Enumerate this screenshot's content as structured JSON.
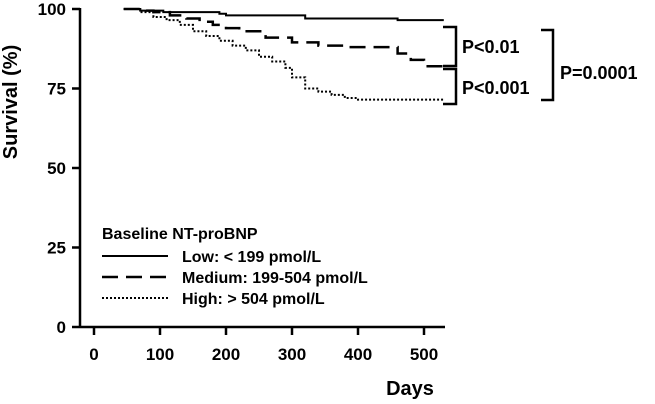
{
  "chart_data": {
    "type": "line",
    "xlabel": "Days",
    "ylabel": "Survival (%)",
    "xlim": [
      -10,
      540
    ],
    "ylim": [
      0,
      100
    ],
    "xticks": [
      0,
      100,
      200,
      300,
      400,
      500
    ],
    "yticks": [
      0,
      25,
      50,
      75,
      100
    ],
    "grid": false,
    "legend": {
      "title": "Baseline NT-proBNP",
      "placement": "bottom-left",
      "entries": [
        "Low: < 199 pmol/L",
        "Medium: 199-504 pmol/L",
        "High: > 504 pmol/L"
      ]
    },
    "series": [
      {
        "name": "Low: < 199 pmol/L",
        "style": "solid",
        "x": [
          45,
          65,
          70,
          100,
          105,
          120,
          190,
          200,
          300,
          320,
          450,
          460,
          530
        ],
        "y": [
          100,
          100,
          99.5,
          99.5,
          99,
          99,
          98.5,
          98,
          98,
          97,
          97,
          96.5,
          96.5
        ]
      },
      {
        "name": "Medium: 199-504 pmol/L",
        "style": "dashed",
        "x": [
          45,
          70,
          90,
          115,
          140,
          160,
          180,
          200,
          220,
          260,
          300,
          340,
          380,
          420,
          460,
          480,
          500,
          530
        ],
        "y": [
          100,
          99.5,
          99,
          98,
          97,
          96,
          95,
          94,
          93,
          91,
          89.5,
          88.5,
          88,
          88,
          86,
          84,
          82,
          82
        ]
      },
      {
        "name": "High: > 504 pmol/L",
        "style": "dotted",
        "x": [
          45,
          70,
          90,
          110,
          130,
          150,
          170,
          190,
          210,
          230,
          250,
          270,
          290,
          300,
          320,
          340,
          360,
          380,
          400,
          420,
          450,
          530
        ],
        "y": [
          100,
          99,
          97.5,
          96.5,
          95,
          93,
          91.5,
          90,
          88.5,
          87,
          85,
          83.5,
          81.5,
          78.5,
          75,
          74,
          73,
          72,
          71.5,
          71.5,
          71.5,
          71.5
        ]
      }
    ],
    "annotations": [
      {
        "label": "P<0.01",
        "between": [
          "Low: < 199 pmol/L",
          "Medium: 199-504 pmol/L"
        ]
      },
      {
        "label": "P<0.001",
        "between": [
          "Medium: 199-504 pmol/L",
          "High: > 504 pmol/L"
        ]
      },
      {
        "label": "P=0.0001",
        "between": [
          "Low: < 199 pmol/L",
          "High: > 504 pmol/L"
        ]
      }
    ]
  }
}
